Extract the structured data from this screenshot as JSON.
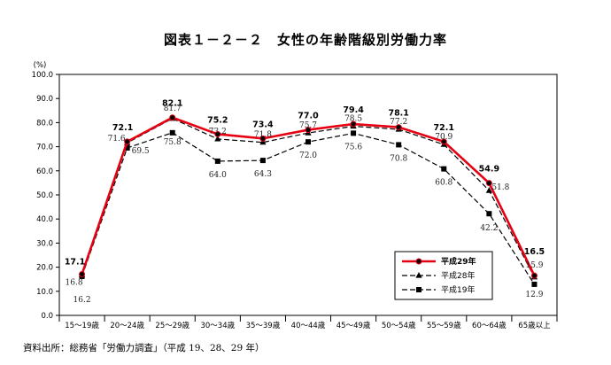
{
  "title": "図表１－２－２　女性の年齢階級別労働力率",
  "source_note": "資料出所：総務省「労働力調査」（平成 19、28、29 年）",
  "chart_data": {
    "type": "line",
    "title": "図表１－２－２　女性の年齢階級別労働力率",
    "ylabel": "(%)",
    "xlabel": "",
    "ylim": [
      0,
      100
    ],
    "yticks": [
      "0.0",
      "10.0",
      "20.0",
      "30.0",
      "40.0",
      "50.0",
      "60.0",
      "70.0",
      "80.0",
      "90.0",
      "100.0"
    ],
    "categories": [
      "15～19歳",
      "20～24歳",
      "25～29歳",
      "30～34歳",
      "35～39歳",
      "40～44歳",
      "45～49歳",
      "50～54歳",
      "55～59歳",
      "60～64歳",
      "65歳以上"
    ],
    "grid": false,
    "legend_position": "bottom-right",
    "series": [
      {
        "name": "平成29年",
        "values": [
          17.1,
          72.1,
          82.1,
          75.2,
          73.4,
          77.0,
          79.4,
          78.1,
          72.1,
          54.9,
          16.5
        ],
        "labels": [
          "17.1",
          "72.1",
          "82.1",
          "75.2",
          "73.4",
          "77.0",
          "79.4",
          "78.1",
          "72.1",
          "54.9",
          "16.5"
        ],
        "color": "#e60012",
        "style": "solid",
        "marker": "circle"
      },
      {
        "name": "平成28年",
        "values": [
          16.8,
          71.6,
          81.7,
          73.2,
          71.8,
          75.7,
          78.5,
          77.2,
          70.9,
          51.8,
          15.9
        ],
        "labels": [
          "16.8",
          "71.6",
          "81.7",
          "73.2",
          "71.8",
          "75.7",
          "78.5",
          "77.2",
          "70.9",
          "51.8",
          "15.9"
        ],
        "color": "#000000",
        "style": "dashed",
        "marker": "triangle"
      },
      {
        "name": "平成19年",
        "values": [
          16.2,
          69.5,
          75.8,
          64.0,
          64.3,
          72.0,
          75.6,
          70.8,
          60.8,
          42.2,
          12.9
        ],
        "labels": [
          "16.2",
          "69.5",
          "75.8",
          "64.0",
          "64.3",
          "72.0",
          "75.6",
          "70.8",
          "60.8",
          "42.2",
          "12.9"
        ],
        "color": "#000000",
        "style": "dashed",
        "marker": "square"
      }
    ]
  }
}
